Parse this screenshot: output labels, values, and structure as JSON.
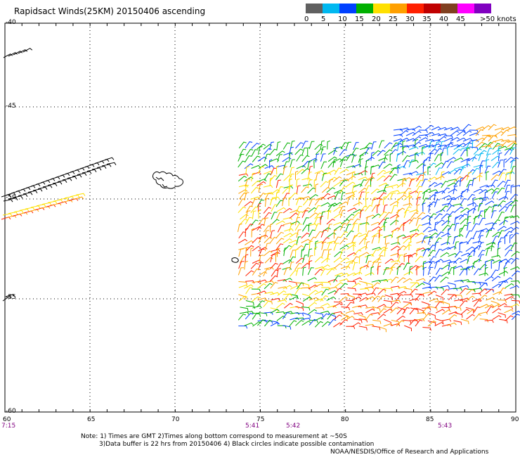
{
  "title": "Rapidsact Winds(25KM) 20150406 ascending",
  "scale": {
    "labels": [
      "0",
      "5",
      "10",
      "15",
      "20",
      "25",
      "30",
      "35",
      "40",
      "45",
      ">50 knots"
    ],
    "colors": [
      "#606060",
      "#00b8f0",
      "#0040ff",
      "#00b000",
      "#ffe000",
      "#ffa000",
      "#ff2000",
      "#c00000",
      "#804020",
      "#ff00ff",
      "#8000c0"
    ]
  },
  "map": {
    "lat_labels": [
      "-40",
      "-45",
      "-50",
      "-55",
      "-60"
    ],
    "lon_labels": [
      "60",
      "65",
      "70",
      "75",
      "80",
      "85",
      "90"
    ],
    "time_labels": [
      "7:15",
      "5:41",
      "5:42",
      "5:43"
    ]
  },
  "notes": {
    "line1": "Note: 1) Times are GMT 2)Times along bottom correspond to measurement at ~50S",
    "line2": "3)Data buffer is 22 hrs from 20150406 4) Black circles indicate possible contamination",
    "credit": "NOAA/NESDIS/Office of Research and Applications"
  }
}
